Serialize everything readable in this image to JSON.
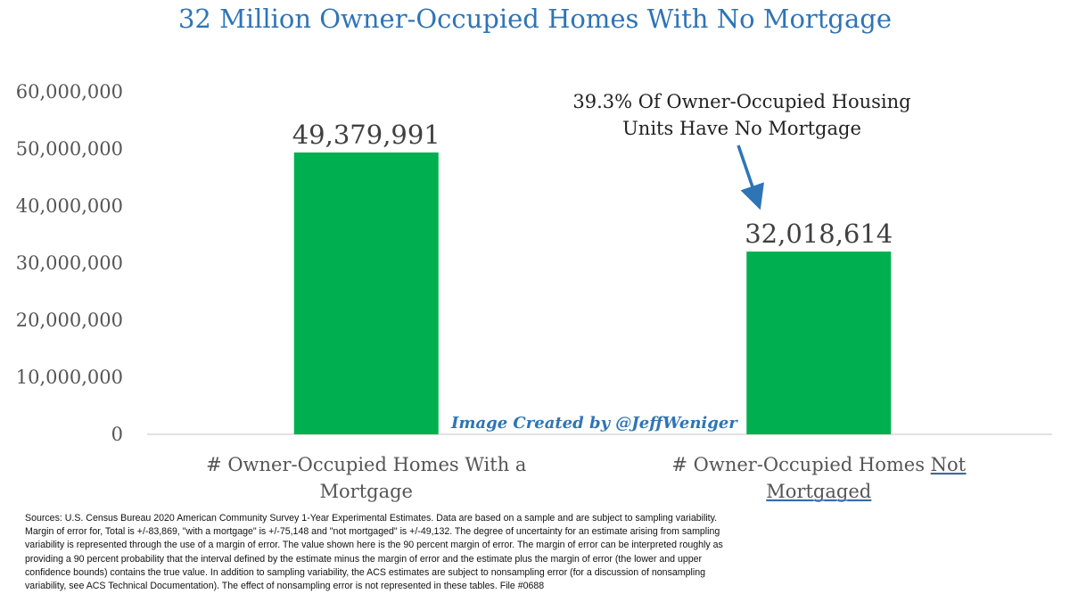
{
  "title": "32 Million Owner-Occupied Homes With No Mortgage",
  "chart_data": {
    "type": "bar",
    "categories": [
      "# Owner-Occupied Homes With a Mortgage",
      "# Owner-Occupied Homes Not Mortgaged"
    ],
    "category_label_lines": [
      [
        "# Owner-Occupied Homes With a",
        "Mortgage"
      ],
      [
        "# Owner-Occupied Homes ",
        "Not",
        "Mortgaged"
      ]
    ],
    "values": [
      49379991,
      32018614
    ],
    "data_labels": [
      "49,379,991",
      "32,018,614"
    ],
    "ylim": [
      0,
      60000000
    ],
    "yticks": [
      0,
      10000000,
      20000000,
      30000000,
      40000000,
      50000000,
      60000000
    ],
    "ytick_labels": [
      "0",
      "10,000,000",
      "20,000,000",
      "30,000,000",
      "40,000,000",
      "50,000,000",
      "60,000,000"
    ],
    "bar_color": "#00b050",
    "grid": false,
    "annotation": {
      "lines": [
        "39.3% Of Owner-Occupied Housing",
        "Units Have No Mortgage"
      ],
      "arrow_color": "#2e75b6",
      "target_category": 1
    },
    "watermark": "Image Created by @JeffWeniger"
  },
  "sources": "Sources: U.S. Census Bureau 2020 American Community Survey 1-Year Experimental Estimates. Data are based on a sample and are subject to sampling variability.\nMargin of error for, Total is +/-83,869, \"with a mortgage\" is +/-75,148 and \"not mortgaged\" is +/-49,132. The degree of uncertainty for an estimate arising from sampling\nvariability is represented through the use of a margin of error. The value shown here is the 90 percent margin of error. The margin of error can be interpreted roughly as\nproviding a 90 percent probability that the interval defined by the estimate minus the margin of error and the estimate plus the margin of error (the lower and upper\nconfidence bounds) contains the true value. In addition to sampling variability, the ACS estimates are subject to nonsampling error (for a discussion of nonsampling\nvariability, see ACS Technical Documentation). The effect of nonsampling error is not represented in these tables. File #0688"
}
